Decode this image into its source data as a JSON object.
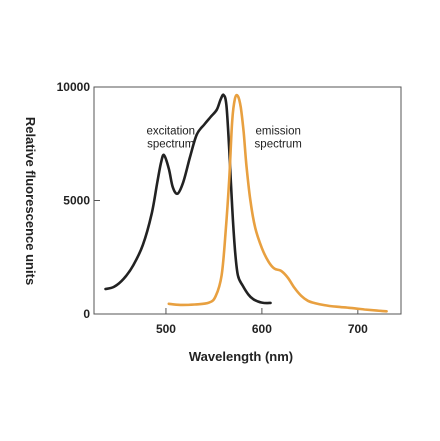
{
  "chart_data": {
    "type": "line",
    "title": "",
    "xlabel": "Wavelength (nm)",
    "ylabel": "Relative fluorescence units",
    "xlim": [
      425,
      745
    ],
    "ylim": [
      0,
      10000
    ],
    "x_ticks": [
      500,
      600,
      700
    ],
    "y_ticks": [
      0,
      5000,
      10000
    ],
    "grid": false,
    "legend": "none",
    "colors": {
      "excitation": "#222222",
      "emission": "#e8a040",
      "axes": "#555555"
    },
    "annotations": [
      {
        "name": "excitation",
        "lines": [
          "excitation",
          "spectrum"
        ],
        "anchor": [
          505,
          7900
        ]
      },
      {
        "name": "emission",
        "lines": [
          "emission",
          "spectrum"
        ],
        "anchor": [
          617,
          7900
        ]
      }
    ],
    "series": [
      {
        "key": "excitation",
        "color": "#222222",
        "x": [
          437,
          446,
          456,
          466,
          476,
          485,
          491,
          495,
          498,
          503,
          507,
          512,
          518,
          525,
          532,
          540,
          547,
          553,
          557,
          560,
          563,
          566,
          569,
          572,
          575,
          580,
          586,
          591,
          596,
          600,
          605,
          609
        ],
        "y": [
          1100,
          1200,
          1550,
          2150,
          3050,
          4400,
          5800,
          6700,
          7000,
          6400,
          5600,
          5300,
          5800,
          6900,
          7900,
          8350,
          8700,
          9000,
          9450,
          9650,
          9200,
          7200,
          4700,
          2800,
          1700,
          1250,
          850,
          650,
          550,
          500,
          480,
          490
        ]
      },
      {
        "key": "emission",
        "color": "#e8a040",
        "x": [
          503,
          515,
          530,
          545,
          552,
          558,
          562,
          566,
          569,
          572,
          575,
          578,
          581,
          584,
          588,
          593,
          600,
          607,
          613,
          620,
          627,
          634,
          641,
          648,
          655,
          665,
          678,
          692,
          707,
          720,
          730
        ],
        "y": [
          450,
          400,
          420,
          500,
          800,
          1700,
          3500,
          6000,
          8500,
          9500,
          9600,
          9100,
          8000,
          6500,
          5000,
          3800,
          2900,
          2300,
          2000,
          1900,
          1600,
          1150,
          800,
          580,
          480,
          390,
          320,
          270,
          200,
          150,
          120
        ]
      }
    ]
  }
}
